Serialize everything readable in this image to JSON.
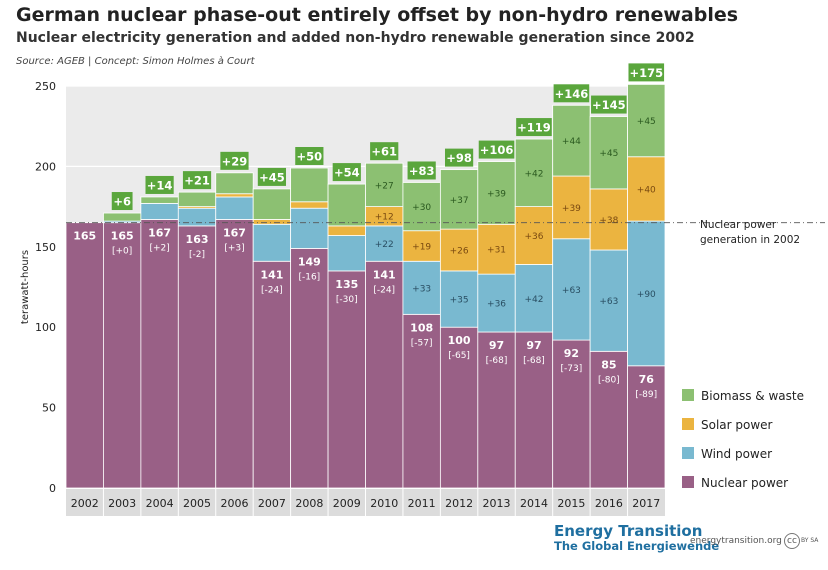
{
  "header": {
    "title": "German nuclear phase-out entirely offset by non-hydro renewables",
    "subtitle": "Nuclear electricity generation and added non-hydro renewable generation since 2002",
    "source": "Source:  AGEB | Concept: Simon Holmes à Court"
  },
  "footer": {
    "brand_line1": "Energy Transition",
    "brand_line2": "The Global Energiewende",
    "site": "energytransition.org",
    "cc": "cc",
    "by": "BY SA"
  },
  "colors": {
    "nuclear": "#996086",
    "wind": "#79b9d0",
    "solar": "#ebb440",
    "biomass": "#8cc072",
    "total_badge": "#5aa63c",
    "plot_bg": "#ebebeb"
  },
  "chart_data": {
    "type": "bar",
    "stacked": true,
    "categories": [
      "2002",
      "2003",
      "2004",
      "2005",
      "2006",
      "2007",
      "2008",
      "2009",
      "2010",
      "2011",
      "2012",
      "2013",
      "2014",
      "2015",
      "2016",
      "2017"
    ],
    "ylabel": "terawatt-hours",
    "ylim": [
      0,
      250
    ],
    "yticks": [
      0,
      50,
      100,
      150,
      200,
      250
    ],
    "grid": true,
    "series": [
      {
        "name": "Nuclear power",
        "values": [
          165,
          165,
          167,
          163,
          167,
          141,
          149,
          135,
          141,
          108,
          100,
          97,
          97,
          92,
          85,
          76
        ]
      },
      {
        "name": "Wind power",
        "values": [
          0,
          1,
          10,
          11,
          14,
          23,
          25,
          22,
          22,
          33,
          35,
          36,
          42,
          63,
          63,
          90
        ]
      },
      {
        "name": "Solar power",
        "values": [
          0,
          0,
          0,
          1,
          2,
          3,
          4,
          6,
          12,
          19,
          26,
          31,
          36,
          39,
          38,
          40
        ]
      },
      {
        "name": "Biomass & waste",
        "values": [
          0,
          5,
          4,
          9,
          13,
          19,
          21,
          26,
          27,
          30,
          37,
          39,
          42,
          44,
          45,
          45
        ]
      }
    ],
    "nuclear_labels": [
      "165",
      "165",
      "167",
      "163",
      "167",
      "141",
      "149",
      "135",
      "141",
      "108",
      "100",
      "97",
      "97",
      "92",
      "85",
      "76"
    ],
    "nuclear_change_labels": [
      "",
      "[+0]",
      "[+2]",
      "[-2]",
      "[+3]",
      "[-24]",
      "[-16]",
      "[-30]",
      "[-24]",
      "[-57]",
      "[-65]",
      "[-68]",
      "[-68]",
      "[-73]",
      "[-80]",
      "[-89]"
    ],
    "added_total_labels": [
      "",
      "+6",
      "+14",
      "+21",
      "+29",
      "+45",
      "+50",
      "+54",
      "+61",
      "+83",
      "+98",
      "+106",
      "+119",
      "+146",
      "+145",
      "+175"
    ],
    "segment_labels": {
      "wind": [
        "",
        "",
        "",
        "",
        "",
        "",
        "",
        "",
        "+22",
        "+33",
        "+35",
        "+36",
        "+42",
        "+63",
        "+63",
        "+90"
      ],
      "solar": [
        "",
        "",
        "",
        "",
        "",
        "",
        "",
        "",
        "+12",
        "+19",
        "+26",
        "+31",
        "+36",
        "+39",
        "+38",
        "+40"
      ],
      "biomass": [
        "",
        "",
        "",
        "",
        "",
        "",
        "",
        "",
        "+27",
        "+30",
        "+37",
        "+39",
        "+42",
        "+44",
        "+45",
        "+45"
      ]
    },
    "reference_line": {
      "value": 165,
      "label_line1": "Nuclear power",
      "label_line2": "generation in 2002"
    },
    "legend": {
      "placement": "right",
      "items": [
        "Biomass & waste",
        "Solar power",
        "Wind power",
        "Nuclear power"
      ]
    }
  }
}
